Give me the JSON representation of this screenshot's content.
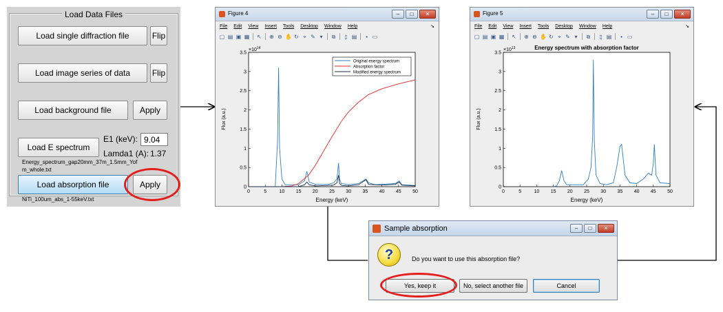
{
  "panel": {
    "title": "Load Data Files",
    "btn_single": "Load single diffraction file",
    "btn_series": "Load image series of data",
    "flip1": "Flip",
    "flip2": "Flip",
    "btn_background": "Load background file",
    "apply_bg": "Apply",
    "btn_espectrum": "Load E spectrum",
    "e1_label": "E1 (keV):",
    "e1_value": "9.04",
    "lamda_label": "Lamda1 (A):",
    "lamda_value": "1.37",
    "spectrum_file_1": "Energy_spectrum_gap20mm_37m_1.5mm_Yof",
    "spectrum_file_2": "m_whole.txt",
    "btn_absorption": "Load absorption file",
    "apply_abs": "Apply",
    "absorption_file": "NiTi_100um_abs_1-55keV.txt"
  },
  "menu": [
    "File",
    "Edit",
    "View",
    "Insert",
    "Tools",
    "Desktop",
    "Window",
    "Help"
  ],
  "figure4": {
    "window_title": "Figure 4",
    "multiplier": "×10",
    "multiplier_exp": "14",
    "xlabel": "Energy (keV)",
    "ylabel": "Flux (a.u.)",
    "legend": [
      "Original energy spectrum",
      "Absorption factor",
      "Modified energy spectrum"
    ],
    "legend_colors": [
      "#2f7ec1",
      "#e8262a",
      "#1a2b4a"
    ]
  },
  "figure5": {
    "window_title": "Figure 5",
    "plot_title": "Energy spectrum with absorption factor",
    "multiplier": "×10",
    "multiplier_exp": "13",
    "xlabel": "Energy (keV)",
    "ylabel": "Flux (a.u.)"
  },
  "dialog": {
    "title": "Sample absorption",
    "question": "Do you want to use this absorption file?",
    "btn_yes": "Yes, keep it",
    "btn_no": "No, select another file",
    "btn_cancel": "Cancel"
  },
  "chart_data": [
    {
      "type": "line",
      "title": "",
      "xlabel": "Energy (keV)",
      "ylabel": "Flux (a.u.)",
      "xlim": [
        0,
        50
      ],
      "ylim": [
        0,
        3.5
      ],
      "y_scale_note": "×10^14",
      "xticks": [
        0,
        5,
        10,
        15,
        20,
        25,
        30,
        35,
        40,
        45,
        50
      ],
      "yticks": [
        0,
        0.5,
        1,
        1.5,
        2,
        2.5,
        3,
        3.5
      ],
      "legend_position": "top-right",
      "series": [
        {
          "name": "Original energy spectrum",
          "color": "#2f7ec1",
          "x": [
            0,
            8.0,
            8.7,
            9.0,
            9.3,
            10.0,
            11,
            15,
            16.8,
            17.5,
            18.2,
            20,
            24,
            25.5,
            26.5,
            27.0,
            27.3,
            27.8,
            30,
            33,
            35.2,
            36,
            38,
            44,
            45.2,
            46,
            50
          ],
          "y": [
            0,
            0.0,
            1.2,
            3.1,
            1.0,
            0.2,
            0.05,
            0.05,
            0.15,
            0.4,
            0.12,
            0.06,
            0.06,
            0.1,
            0.2,
            0.62,
            0.2,
            0.08,
            0.05,
            0.08,
            0.2,
            0.1,
            0.05,
            0.08,
            0.15,
            0.05,
            0.03
          ]
        },
        {
          "name": "Absorption factor",
          "color": "#e8262a",
          "x": [
            0,
            10,
            13,
            15,
            18,
            20,
            22,
            25,
            28,
            30,
            33,
            36,
            40,
            45,
            50
          ],
          "y": [
            0,
            0,
            0.02,
            0.08,
            0.3,
            0.55,
            0.85,
            1.3,
            1.72,
            1.95,
            2.2,
            2.4,
            2.55,
            2.68,
            2.78
          ]
        },
        {
          "name": "Modified energy spectrum",
          "color": "#1a2b4a",
          "x": [
            0,
            15,
            16.8,
            17.5,
            18.2,
            20,
            25.5,
            26.5,
            27.0,
            27.3,
            28,
            30,
            33,
            35.2,
            36,
            40,
            44,
            45.2,
            46,
            50
          ],
          "y": [
            0,
            0,
            0.05,
            0.12,
            0.05,
            0.02,
            0.04,
            0.1,
            0.3,
            0.08,
            0.03,
            0.02,
            0.05,
            0.18,
            0.06,
            0.04,
            0.06,
            0.12,
            0.04,
            0.02
          ]
        }
      ]
    },
    {
      "type": "line",
      "title": "Energy spectrum with absorption factor",
      "xlabel": "Energy (keV)",
      "ylabel": "Flux (a.u.)",
      "xlim": [
        0,
        50
      ],
      "ylim": [
        0,
        3.5
      ],
      "y_scale_note": "×10^13",
      "xticks": [
        0,
        5,
        10,
        15,
        20,
        25,
        30,
        35,
        40,
        45,
        50
      ],
      "yticks": [
        0,
        0.5,
        1,
        1.5,
        2,
        2.5,
        3,
        3.5
      ],
      "series": [
        {
          "name": "",
          "color": "#2f7ec1",
          "x": [
            15,
            16,
            16.8,
            17.5,
            18.2,
            19,
            24,
            25.5,
            26.3,
            26.8,
            27.0,
            27.3,
            27.8,
            29,
            31,
            33,
            34,
            35.0,
            35.5,
            36.5,
            38,
            40,
            42,
            43.5,
            44.5,
            45.0,
            45.3,
            45.8,
            47,
            50
          ],
          "y": [
            0,
            0.02,
            0.15,
            0.42,
            0.15,
            0.05,
            0.05,
            0.2,
            0.5,
            1.3,
            3.3,
            1.2,
            0.3,
            0.08,
            0.05,
            0.1,
            0.5,
            1.05,
            1.1,
            0.3,
            0.1,
            0.08,
            0.2,
            0.35,
            0.3,
            0.6,
            1.1,
            0.3,
            0.1,
            0.08
          ]
        }
      ]
    }
  ]
}
